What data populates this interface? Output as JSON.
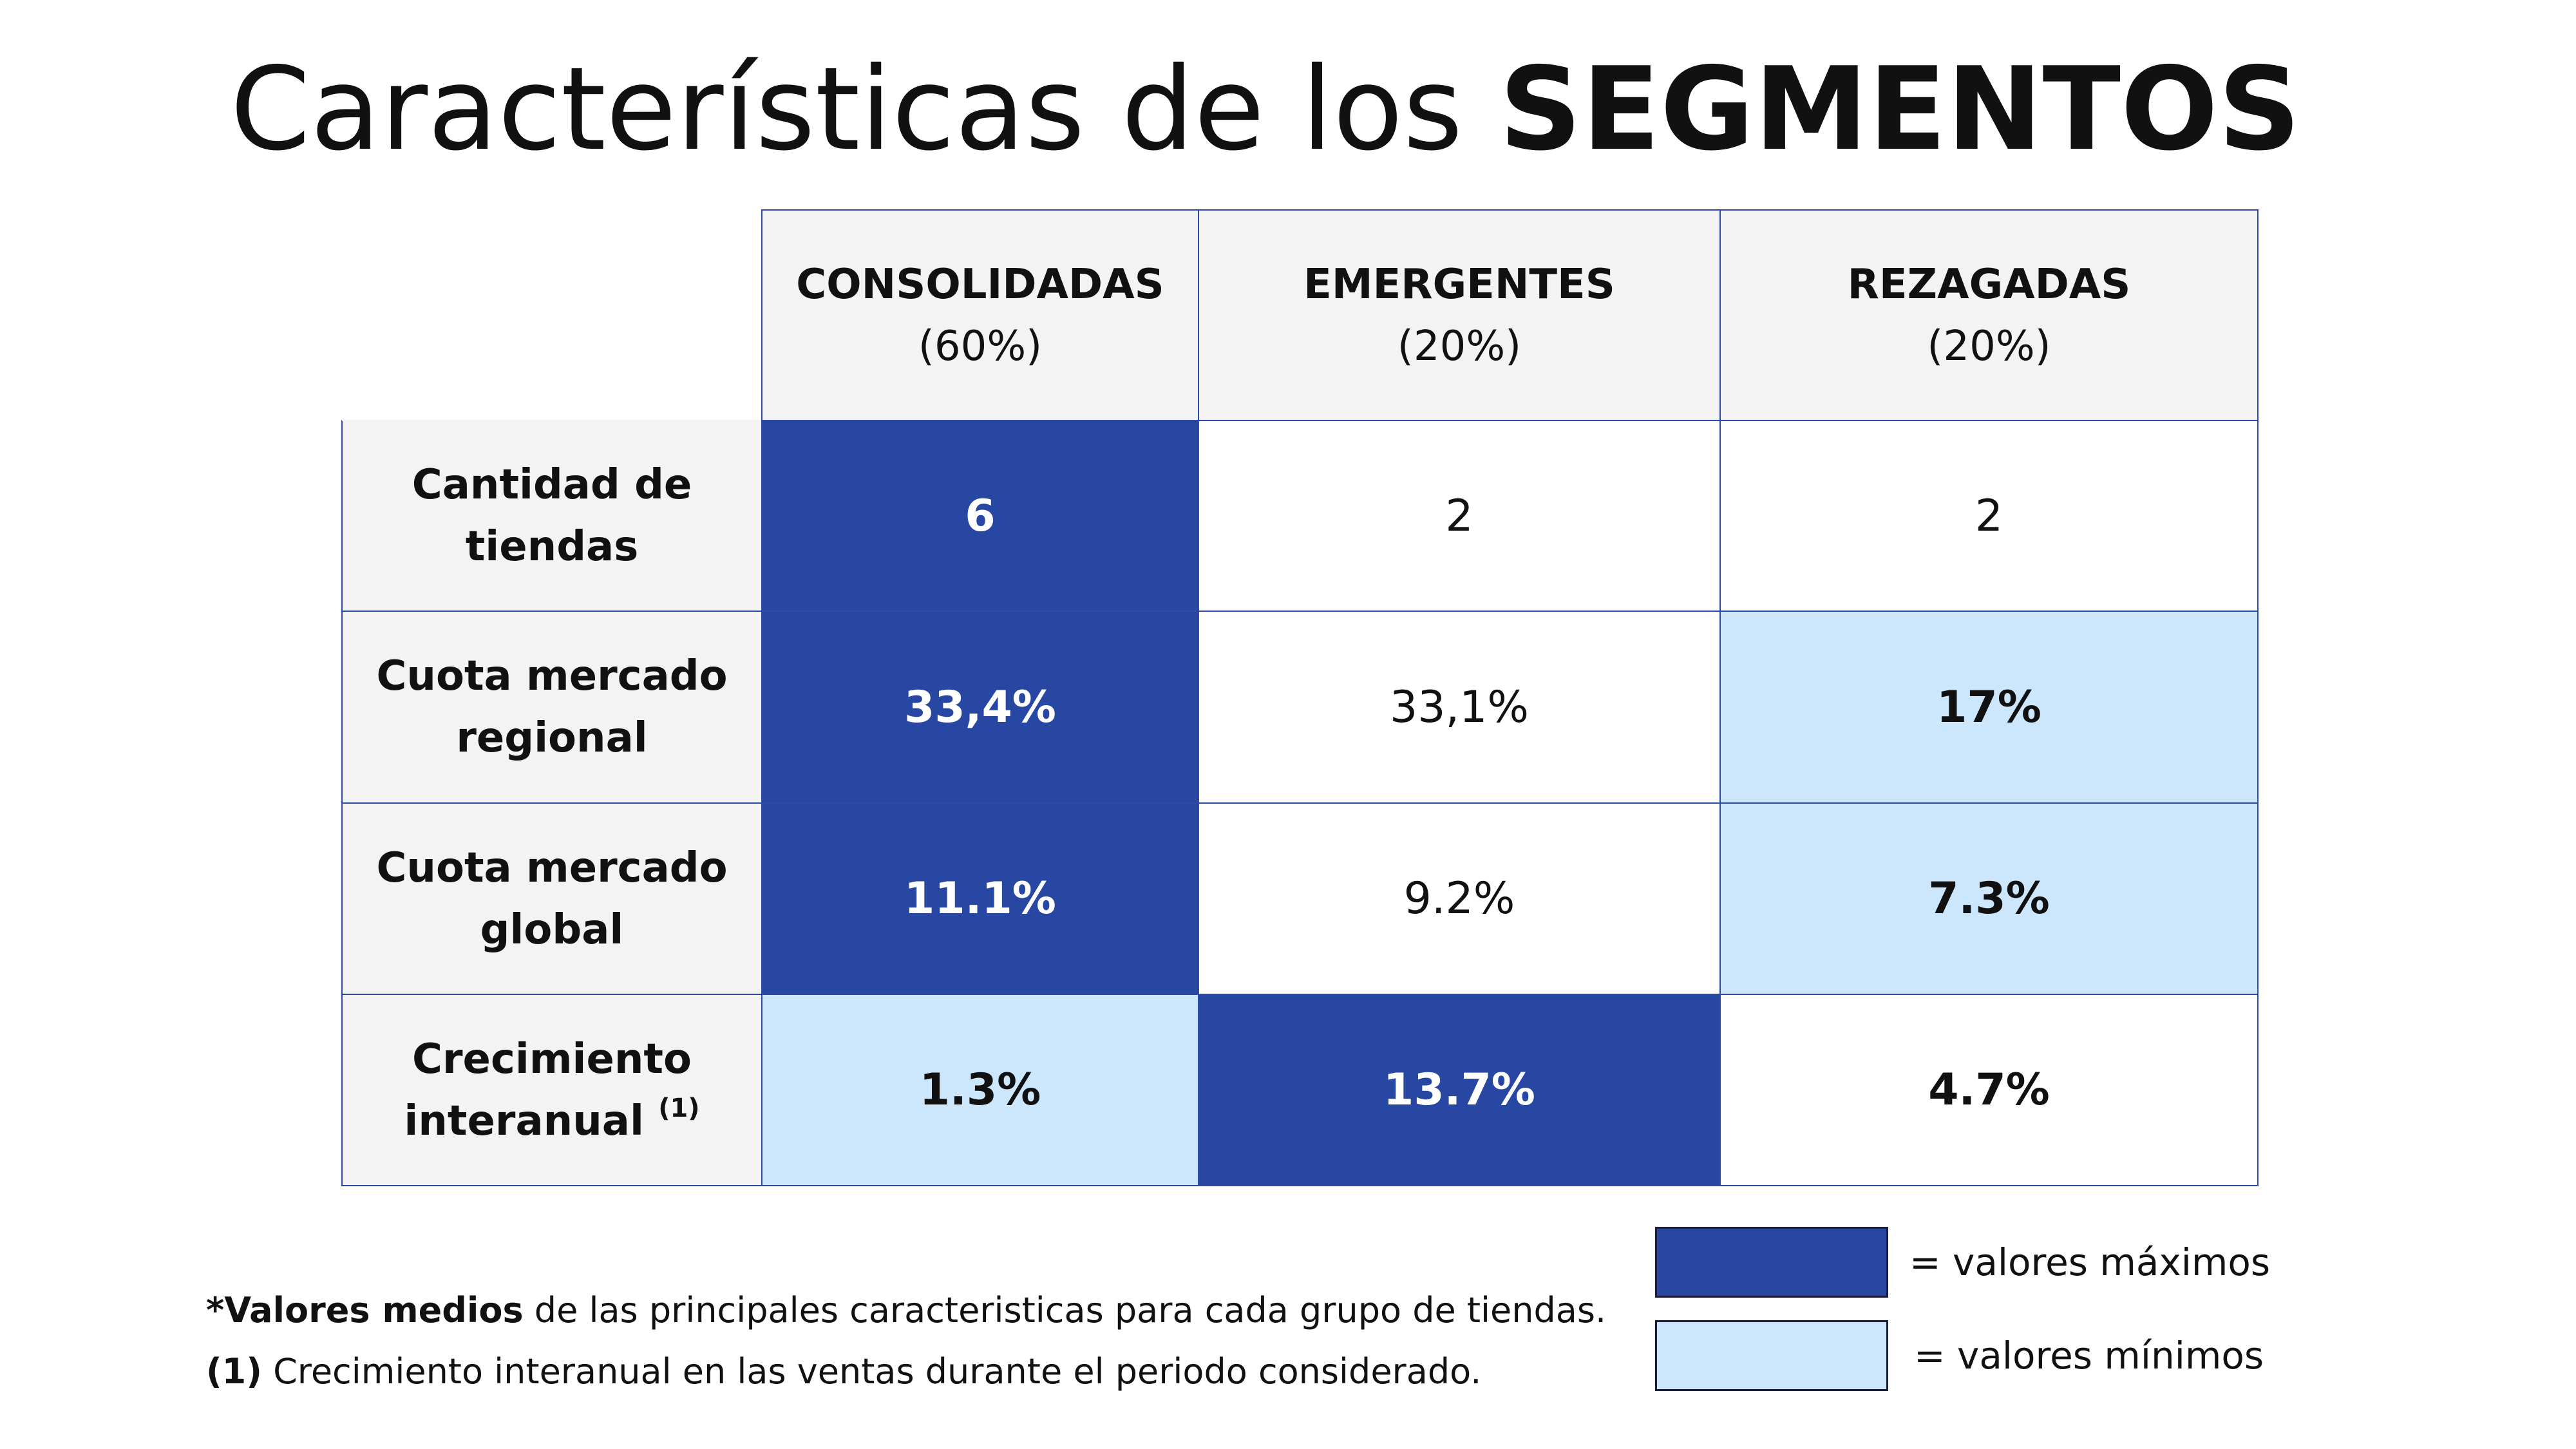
{
  "title": {
    "regular": "Características de los ",
    "bold": "SEGMENTOS"
  },
  "chart_data": {
    "type": "table",
    "columns": [
      {
        "name": "CONSOLIDADAS",
        "share": "(60%)"
      },
      {
        "name": "EMERGENTES",
        "share": "(20%)"
      },
      {
        "name": "REZAGADAS",
        "share": "(20%)"
      }
    ],
    "rows": [
      {
        "label": "Cantidad de tiendas",
        "sup": "",
        "cells": [
          {
            "value": "6",
            "level": "max"
          },
          {
            "value": "2",
            "level": "none"
          },
          {
            "value": "2",
            "level": "none"
          }
        ]
      },
      {
        "label": "Cuota mercado regional",
        "sup": "",
        "cells": [
          {
            "value": "33,4%",
            "level": "max"
          },
          {
            "value": "33,1%",
            "level": "none"
          },
          {
            "value": "17%",
            "level": "min"
          }
        ]
      },
      {
        "label": "Cuota mercado global",
        "sup": "",
        "cells": [
          {
            "value": "11.1%",
            "level": "max"
          },
          {
            "value": "9.2%",
            "level": "none"
          },
          {
            "value": "7.3%",
            "level": "min"
          }
        ]
      },
      {
        "label": "Crecimiento interanual",
        "sup": "(1)",
        "cells": [
          {
            "value": "1.3%",
            "level": "min"
          },
          {
            "value": "13.7%",
            "level": "max"
          },
          {
            "value": "4.7%",
            "level": "bold"
          }
        ]
      }
    ],
    "colors": {
      "max": "#2747a2",
      "min": "#cce6fc",
      "border": "#2c4aa6",
      "header_bg": "#f3f3f3"
    }
  },
  "notes": [
    {
      "bold": "*Valores medios",
      "text": " de las principales caracteristicas para cada grupo de tiendas."
    },
    {
      "bold": "(1)",
      "text": " Crecimiento interanual en las ventas durante el periodo considerado."
    }
  ],
  "legend": [
    {
      "color": "#2747a2",
      "label": "= valores máximos"
    },
    {
      "color": "#cce6fc",
      "label": "= valores mínimos"
    }
  ]
}
